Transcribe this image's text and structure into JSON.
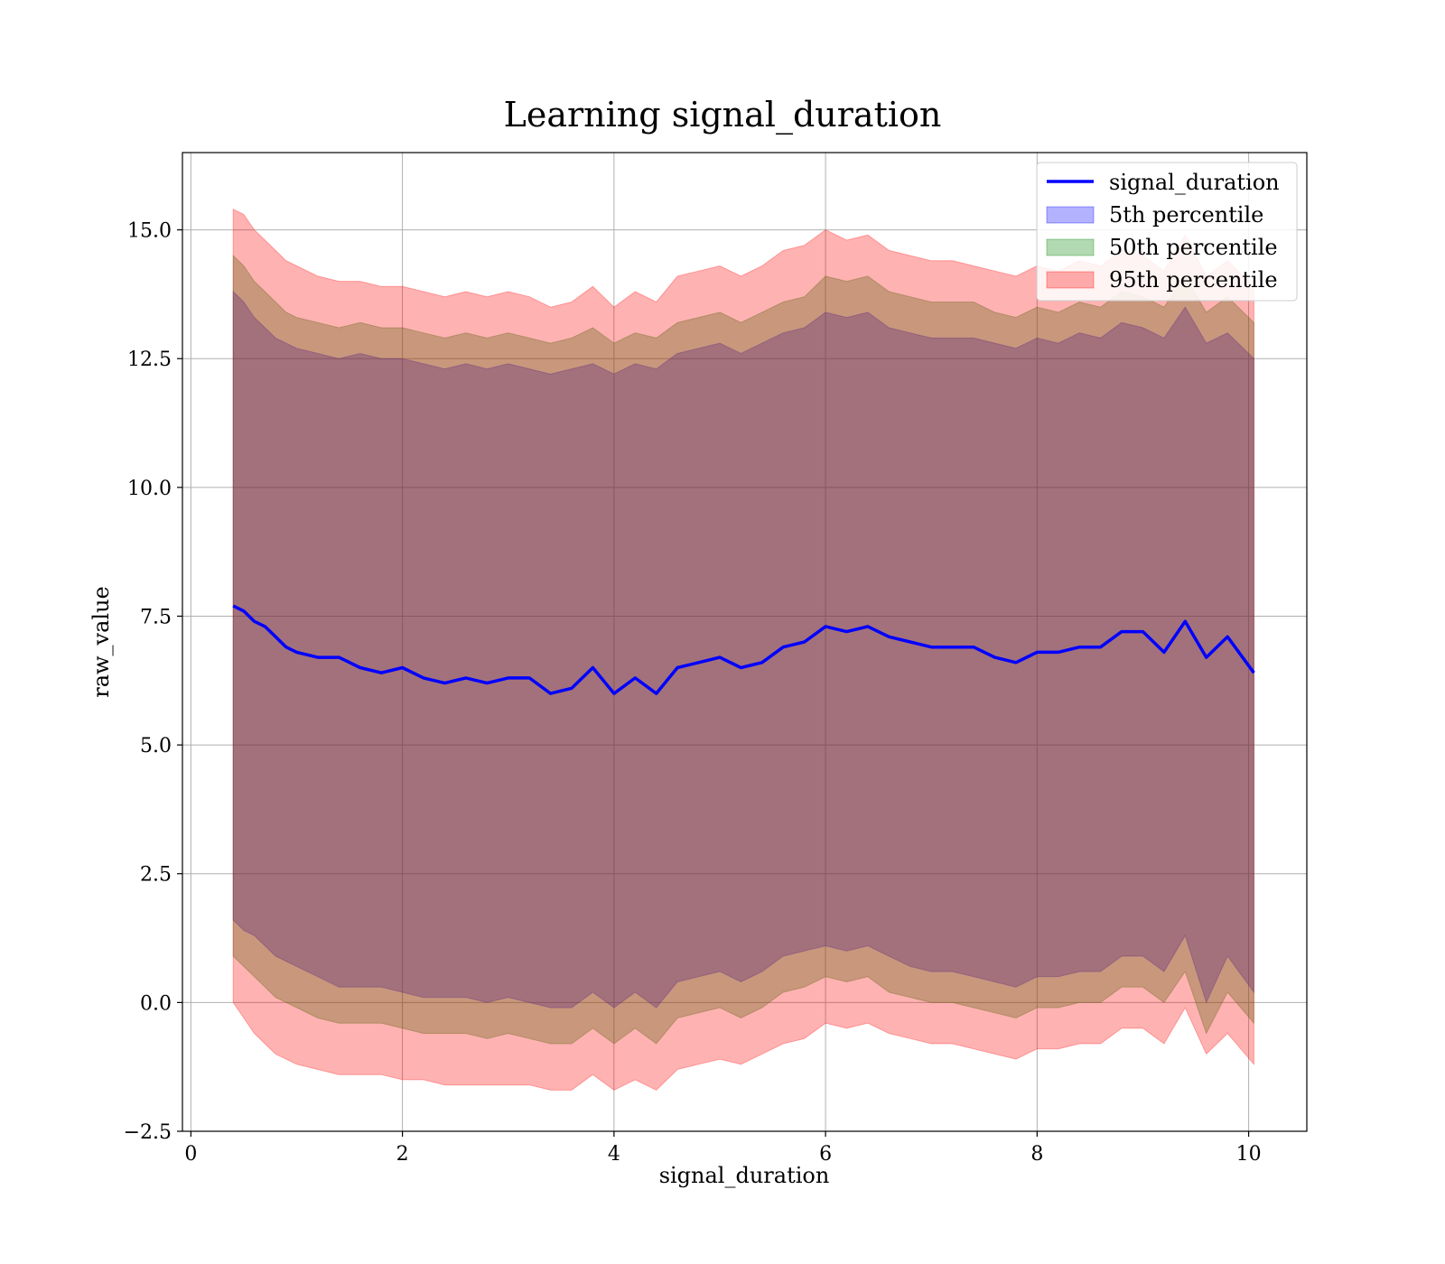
{
  "chart_data": {
    "type": "line",
    "title": "Learning signal_duration",
    "xlabel": "signal_duration",
    "ylabel": "raw_value",
    "xlim": [
      -0.08,
      10.55
    ],
    "ylim": [
      -2.5,
      16.5
    ],
    "x_ticks": [
      0,
      2,
      4,
      6,
      8,
      10
    ],
    "x_tick_labels": [
      "0",
      "2",
      "4",
      "6",
      "8",
      "10"
    ],
    "y_ticks": [
      -2.5,
      0.0,
      2.5,
      5.0,
      7.5,
      10.0,
      12.5,
      15.0
    ],
    "y_tick_labels": [
      "−2.5",
      "0.0",
      "2.5",
      "5.0",
      "7.5",
      "10.0",
      "12.5",
      "15.0"
    ],
    "grid": true,
    "legend_position": "top-right",
    "x": [
      0.4,
      0.5,
      0.6,
      0.7,
      0.8,
      0.9,
      1.0,
      1.2,
      1.4,
      1.6,
      1.8,
      2.0,
      2.2,
      2.4,
      2.6,
      2.8,
      3.0,
      3.2,
      3.4,
      3.6,
      3.8,
      4.0,
      4.2,
      4.4,
      4.6,
      4.8,
      5.0,
      5.2,
      5.4,
      5.6,
      5.8,
      6.0,
      6.2,
      6.4,
      6.6,
      6.8,
      7.0,
      7.2,
      7.4,
      7.6,
      7.8,
      8.0,
      8.2,
      8.4,
      8.6,
      8.8,
      9.0,
      9.2,
      9.4,
      9.6,
      9.8,
      10.05
    ],
    "series": [
      {
        "name": "signal_duration",
        "kind": "line",
        "color": "#0000ff",
        "values": [
          7.7,
          7.6,
          7.4,
          7.3,
          7.1,
          6.9,
          6.8,
          6.7,
          6.7,
          6.5,
          6.4,
          6.5,
          6.3,
          6.2,
          6.3,
          6.2,
          6.3,
          6.3,
          6.0,
          6.1,
          6.5,
          6.0,
          6.3,
          6.0,
          6.5,
          6.6,
          6.7,
          6.5,
          6.6,
          6.9,
          7.0,
          7.3,
          7.2,
          7.3,
          7.1,
          7.0,
          6.9,
          6.9,
          6.9,
          6.7,
          6.6,
          6.8,
          6.8,
          6.9,
          6.9,
          7.2,
          7.2,
          6.8,
          7.4,
          6.7,
          7.1,
          6.4
        ]
      },
      {
        "name": "5th percentile",
        "kind": "band",
        "color": "#0000ff",
        "upper": [
          13.8,
          13.6,
          13.3,
          13.1,
          12.9,
          12.8,
          12.7,
          12.6,
          12.5,
          12.6,
          12.5,
          12.5,
          12.4,
          12.3,
          12.4,
          12.3,
          12.4,
          12.3,
          12.2,
          12.3,
          12.4,
          12.2,
          12.4,
          12.3,
          12.6,
          12.7,
          12.8,
          12.6,
          12.8,
          13.0,
          13.1,
          13.4,
          13.3,
          13.4,
          13.1,
          13.0,
          12.9,
          12.9,
          12.9,
          12.8,
          12.7,
          12.9,
          12.8,
          13.0,
          12.9,
          13.2,
          13.1,
          12.9,
          13.5,
          12.8,
          13.0,
          12.5
        ],
        "lower": [
          1.6,
          1.4,
          1.3,
          1.1,
          0.9,
          0.8,
          0.7,
          0.5,
          0.3,
          0.3,
          0.3,
          0.2,
          0.1,
          0.1,
          0.1,
          0.0,
          0.1,
          0.0,
          -0.1,
          -0.1,
          0.2,
          -0.1,
          0.2,
          -0.1,
          0.4,
          0.5,
          0.6,
          0.4,
          0.6,
          0.9,
          1.0,
          1.1,
          1.0,
          1.1,
          0.9,
          0.7,
          0.6,
          0.6,
          0.5,
          0.4,
          0.3,
          0.5,
          0.5,
          0.6,
          0.6,
          0.9,
          0.9,
          0.6,
          1.3,
          0.0,
          0.9,
          0.2
        ]
      },
      {
        "name": "50th percentile",
        "kind": "band",
        "color": "#008000",
        "upper": [
          14.5,
          14.3,
          14.0,
          13.8,
          13.6,
          13.4,
          13.3,
          13.2,
          13.1,
          13.2,
          13.1,
          13.1,
          13.0,
          12.9,
          13.0,
          12.9,
          13.0,
          12.9,
          12.8,
          12.9,
          13.1,
          12.8,
          13.0,
          12.9,
          13.2,
          13.3,
          13.4,
          13.2,
          13.4,
          13.6,
          13.7,
          14.1,
          14.0,
          14.1,
          13.8,
          13.7,
          13.6,
          13.6,
          13.6,
          13.4,
          13.3,
          13.5,
          13.4,
          13.6,
          13.5,
          13.8,
          13.7,
          13.5,
          14.1,
          13.4,
          13.7,
          13.2
        ],
        "lower": [
          0.9,
          0.7,
          0.5,
          0.3,
          0.1,
          0.0,
          -0.1,
          -0.3,
          -0.4,
          -0.4,
          -0.4,
          -0.5,
          -0.6,
          -0.6,
          -0.6,
          -0.7,
          -0.6,
          -0.7,
          -0.8,
          -0.8,
          -0.5,
          -0.8,
          -0.5,
          -0.8,
          -0.3,
          -0.2,
          -0.1,
          -0.3,
          -0.1,
          0.2,
          0.3,
          0.5,
          0.4,
          0.5,
          0.2,
          0.1,
          0.0,
          0.0,
          -0.1,
          -0.2,
          -0.3,
          -0.1,
          -0.1,
          0.0,
          0.0,
          0.3,
          0.3,
          0.0,
          0.6,
          -0.6,
          0.2,
          -0.4
        ]
      },
      {
        "name": "95th percentile",
        "kind": "band",
        "color": "#ff0000",
        "upper": [
          15.4,
          15.3,
          15.0,
          14.8,
          14.6,
          14.4,
          14.3,
          14.1,
          14.0,
          14.0,
          13.9,
          13.9,
          13.8,
          13.7,
          13.8,
          13.7,
          13.8,
          13.7,
          13.5,
          13.6,
          13.9,
          13.5,
          13.8,
          13.6,
          14.1,
          14.2,
          14.3,
          14.1,
          14.3,
          14.6,
          14.7,
          15.0,
          14.8,
          14.9,
          14.6,
          14.5,
          14.4,
          14.4,
          14.3,
          14.2,
          14.1,
          14.3,
          14.2,
          14.4,
          14.3,
          14.6,
          14.5,
          14.2,
          14.9,
          14.1,
          14.4,
          13.9
        ],
        "lower": [
          0.0,
          -0.3,
          -0.6,
          -0.8,
          -1.0,
          -1.1,
          -1.2,
          -1.3,
          -1.4,
          -1.4,
          -1.4,
          -1.5,
          -1.5,
          -1.6,
          -1.6,
          -1.6,
          -1.6,
          -1.6,
          -1.7,
          -1.7,
          -1.4,
          -1.7,
          -1.5,
          -1.7,
          -1.3,
          -1.2,
          -1.1,
          -1.2,
          -1.0,
          -0.8,
          -0.7,
          -0.4,
          -0.5,
          -0.4,
          -0.6,
          -0.7,
          -0.8,
          -0.8,
          -0.9,
          -1.0,
          -1.1,
          -0.9,
          -0.9,
          -0.8,
          -0.8,
          -0.5,
          -0.5,
          -0.8,
          -0.1,
          -1.0,
          -0.6,
          -1.2
        ]
      }
    ]
  }
}
